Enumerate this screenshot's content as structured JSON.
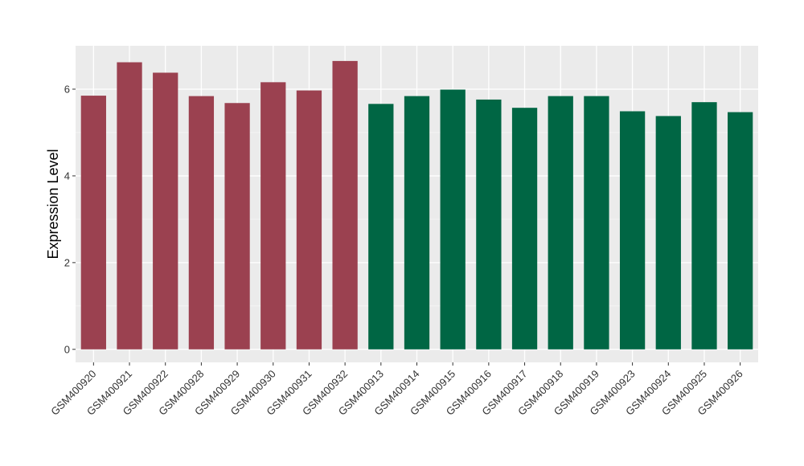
{
  "chart_data": {
    "type": "bar",
    "ylabel": "Expression Level",
    "xlabel": "",
    "ylim": [
      -0.3,
      7.0
    ],
    "yticks": [
      0,
      2,
      4,
      6
    ],
    "grid": true,
    "panel_background": "#ebebeb",
    "categories": [
      "GSM400920",
      "GSM400921",
      "GSM400922",
      "GSM400928",
      "GSM400929",
      "GSM400930",
      "GSM400931",
      "GSM400932",
      "GSM400913",
      "GSM400914",
      "GSM400915",
      "GSM400916",
      "GSM400917",
      "GSM400918",
      "GSM400919",
      "GSM400923",
      "GSM400924",
      "GSM400925",
      "GSM400926"
    ],
    "values": [
      5.85,
      6.62,
      6.38,
      5.84,
      5.68,
      6.16,
      5.97,
      6.65,
      5.66,
      5.84,
      5.99,
      5.76,
      5.57,
      5.84,
      5.84,
      5.49,
      5.38,
      5.7,
      5.47
    ],
    "bar_colors": [
      "#9b4150",
      "#9b4150",
      "#9b4150",
      "#9b4150",
      "#9b4150",
      "#9b4150",
      "#9b4150",
      "#9b4150",
      "#006644",
      "#006644",
      "#006644",
      "#006644",
      "#006644",
      "#006644",
      "#006644",
      "#006644",
      "#006644",
      "#006644",
      "#006644"
    ]
  }
}
